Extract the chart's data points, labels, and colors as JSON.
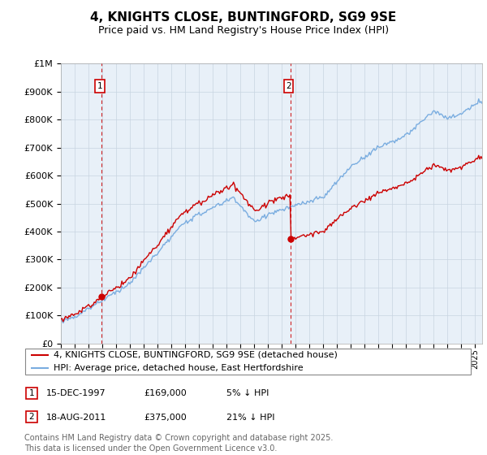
{
  "title": "4, KNIGHTS CLOSE, BUNTINGFORD, SG9 9SE",
  "subtitle": "Price paid vs. HM Land Registry's House Price Index (HPI)",
  "ytick_values": [
    0,
    100000,
    200000,
    300000,
    400000,
    500000,
    600000,
    700000,
    800000,
    900000,
    1000000
  ],
  "ylim": [
    0,
    1000000
  ],
  "xmin": 1995.0,
  "xmax": 2025.5,
  "sale1_x": 1997.96,
  "sale1_y": 169000,
  "sale2_x": 2011.63,
  "sale2_y": 375000,
  "sale1_label": "1",
  "sale2_label": "2",
  "sale1_date": "15-DEC-1997",
  "sale1_price": "£169,000",
  "sale1_pct": "5% ↓ HPI",
  "sale2_date": "18-AUG-2011",
  "sale2_price": "£375,000",
  "sale2_pct": "21% ↓ HPI",
  "hpi_color": "#7aade0",
  "price_color": "#cc0000",
  "dashed_color": "#cc0000",
  "bg_plot": "#e8f0f8",
  "background_color": "#ffffff",
  "grid_color": "#c8d4e0",
  "legend_label_price": "4, KNIGHTS CLOSE, BUNTINGFORD, SG9 9SE (detached house)",
  "legend_label_hpi": "HPI: Average price, detached house, East Hertfordshire",
  "footer": "Contains HM Land Registry data © Crown copyright and database right 2025.\nThis data is licensed under the Open Government Licence v3.0.",
  "title_fontsize": 11,
  "subtitle_fontsize": 9,
  "tick_fontsize": 8,
  "legend_fontsize": 8,
  "footer_fontsize": 7
}
